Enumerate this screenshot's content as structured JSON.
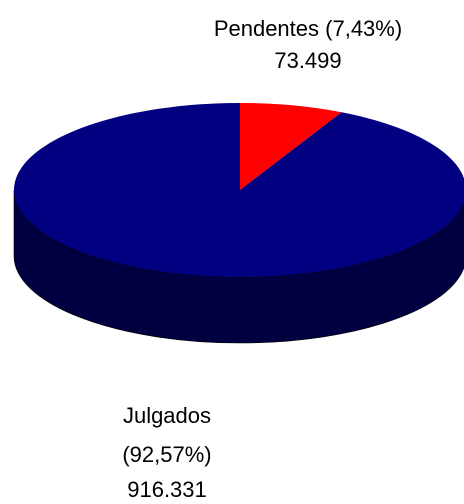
{
  "chart_data": {
    "type": "pie",
    "style": "3d",
    "slices": [
      {
        "name": "Pendentes",
        "value": 73499,
        "percent_label": "(7,43%)",
        "value_label": "73.499",
        "color": "#ff0000",
        "side_color": "#7a0000"
      },
      {
        "name": "Julgados",
        "value": 916331,
        "percent_label": "(92,57%)",
        "value_label": "916.331",
        "color": "#000080",
        "side_color": "#000040"
      }
    ]
  }
}
